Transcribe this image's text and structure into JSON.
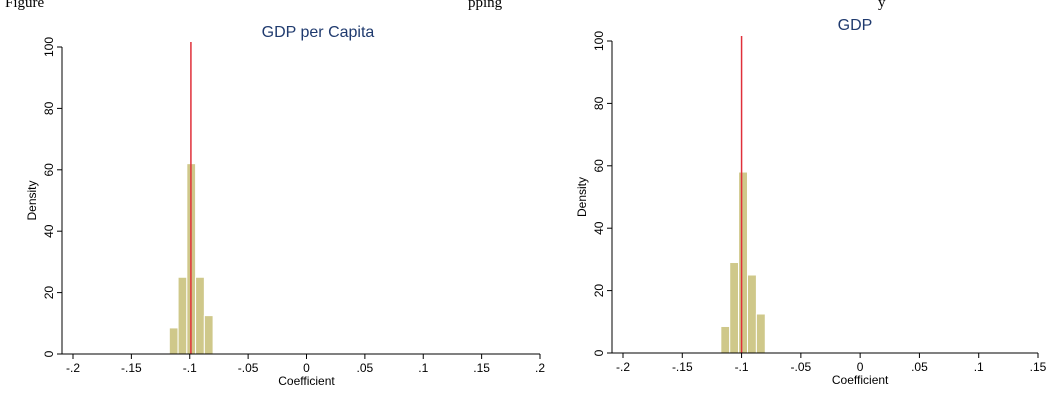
{
  "caption": {
    "left": "Figure",
    "middle": "pping",
    "right": "y"
  },
  "chart_data": [
    {
      "type": "bar",
      "title": "GDP per Capita",
      "xlabel": "Coefficient",
      "ylabel": "Density",
      "xlim": [
        -0.2,
        0.2
      ],
      "ylim": [
        0,
        100
      ],
      "xticks": [
        -0.2,
        -0.15,
        -0.1,
        -0.05,
        0,
        0.05,
        0.1,
        0.15,
        0.2
      ],
      "xtick_labels": [
        "-.2",
        "-.15",
        "-.1",
        "-.05",
        "0",
        ".05",
        ".1",
        ".15",
        ".2"
      ],
      "yticks": [
        0,
        20,
        40,
        60,
        80,
        100
      ],
      "ytick_labels": [
        "0",
        "20",
        "40",
        "60",
        "80",
        "100"
      ],
      "bin_width": 0.0075,
      "bins": [
        {
          "x0": -0.1175,
          "x1": -0.11,
          "density": 8.5
        },
        {
          "x0": -0.11,
          "x1": -0.1025,
          "density": 25
        },
        {
          "x0": -0.1025,
          "x1": -0.095,
          "density": 62
        },
        {
          "x0": -0.095,
          "x1": -0.0875,
          "density": 25
        },
        {
          "x0": -0.0875,
          "x1": -0.08,
          "density": 12.5
        }
      ],
      "reference_line": {
        "x": -0.099,
        "color": "#e0303a"
      },
      "bar_color": "#cfc88a",
      "grid": false
    },
    {
      "type": "bar",
      "title": "GDP",
      "xlabel": "Coefficient",
      "ylabel": "Density",
      "xlim": [
        -0.2,
        0.15
      ],
      "ylim": [
        0,
        100
      ],
      "xticks": [
        -0.2,
        -0.15,
        -0.1,
        -0.05,
        0,
        0.05,
        0.1,
        0.15
      ],
      "xtick_labels": [
        "-.2",
        "-.15",
        "-.1",
        "-.05",
        "0",
        ".05",
        ".1",
        ".15"
      ],
      "yticks": [
        0,
        20,
        40,
        60,
        80,
        100
      ],
      "ytick_labels": [
        "0",
        "20",
        "40",
        "60",
        "80",
        "100"
      ],
      "bin_width": 0.0075,
      "bins": [
        {
          "x0": -0.1175,
          "x1": -0.11,
          "density": 8.5
        },
        {
          "x0": -0.11,
          "x1": -0.1025,
          "density": 29
        },
        {
          "x0": -0.1025,
          "x1": -0.095,
          "density": 58
        },
        {
          "x0": -0.095,
          "x1": -0.0875,
          "density": 25
        },
        {
          "x0": -0.0875,
          "x1": -0.08,
          "density": 12.5
        }
      ],
      "reference_line": {
        "x": -0.1,
        "color": "#e0303a"
      },
      "bar_color": "#cfc88a",
      "grid": false
    }
  ]
}
